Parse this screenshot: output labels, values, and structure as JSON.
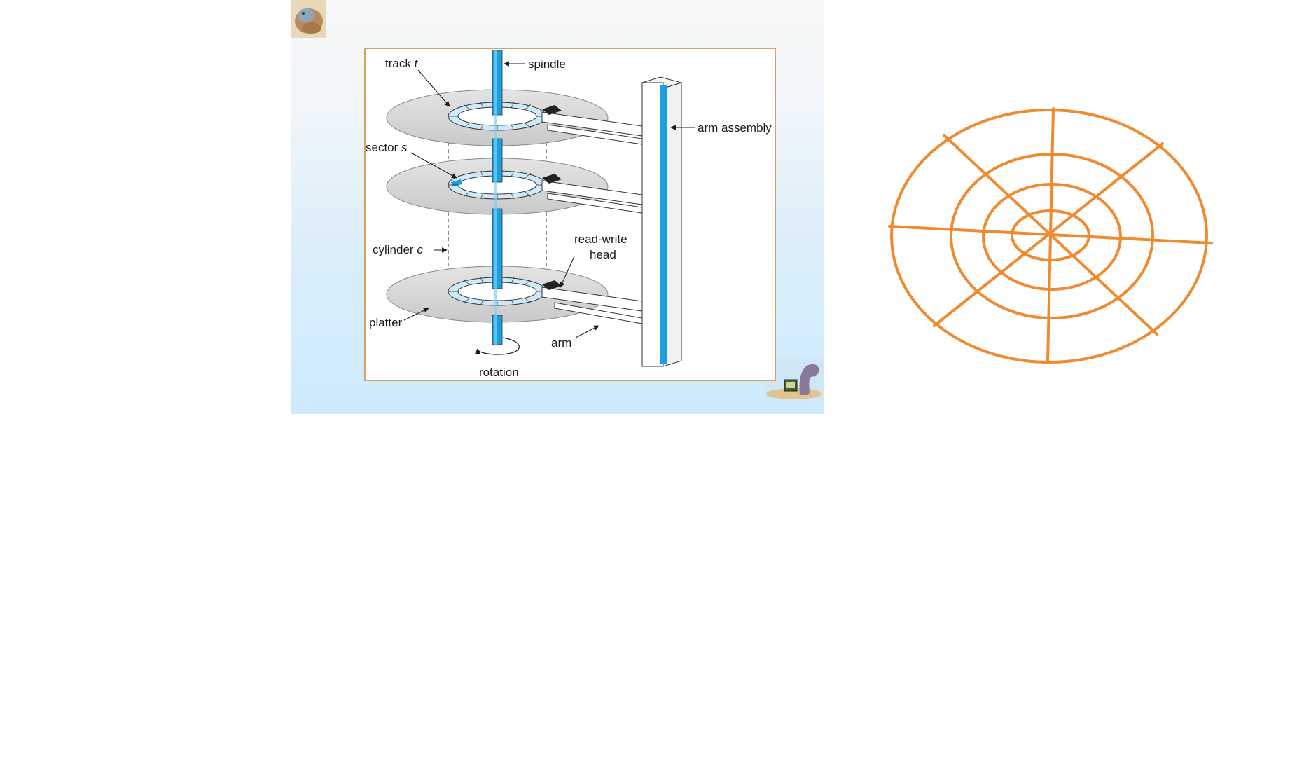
{
  "diagram": {
    "labels": {
      "track": "track",
      "track_var": "t",
      "spindle": "spindle",
      "arm_assembly": "arm assembly",
      "sector": "sector",
      "sector_var": "s",
      "cylinder": "cylinder",
      "cylinder_var": "c",
      "read_write": "read-write",
      "head": "head",
      "platter": "platter",
      "arm": "arm",
      "rotation": "rotation"
    },
    "colors": {
      "spindle": "#1aa0e0",
      "track_ring": "#cfe9f8",
      "platter": "#d8d8d8",
      "frame": "#d9a066",
      "sketch": "#f08a30"
    }
  },
  "icons": {
    "top_left": "dinosaur-logo-icon",
    "bottom_right": "dinosaur-computer-icon"
  },
  "sketch": {
    "rings": 4,
    "spokes": 8
  }
}
